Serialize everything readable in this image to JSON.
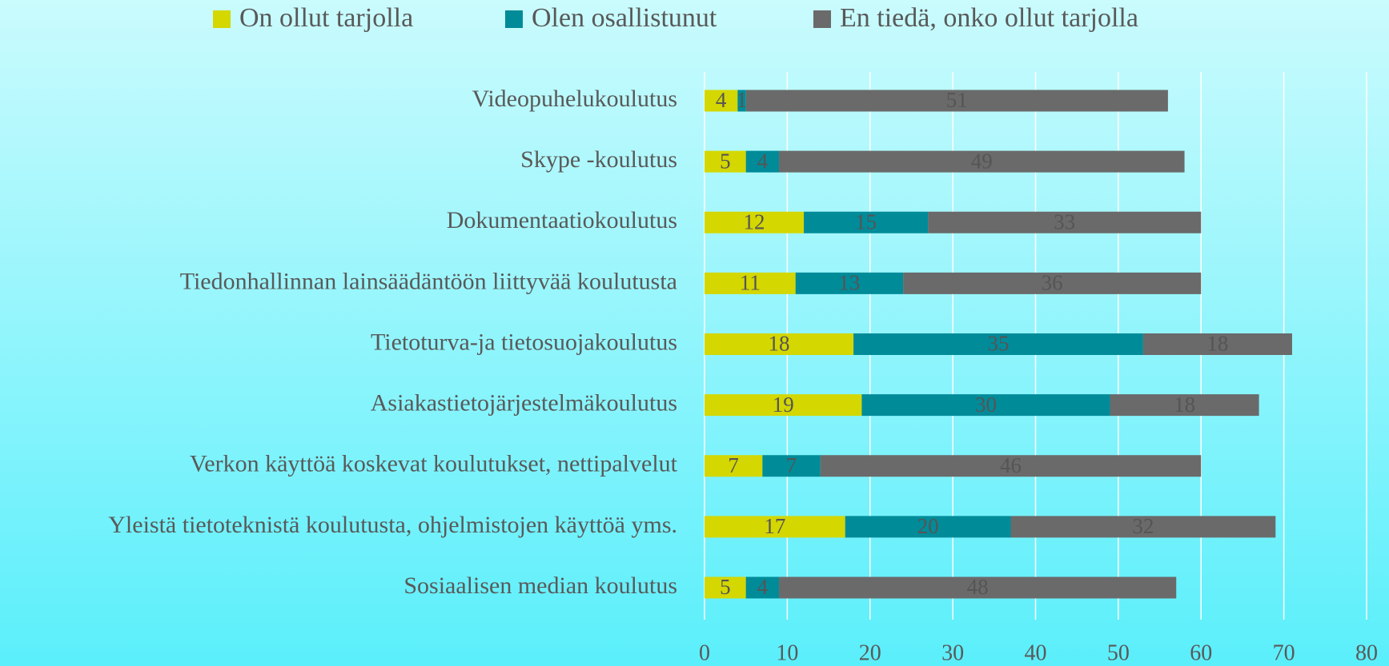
{
  "chart_data": {
    "type": "stacked_barh",
    "categories": [
      "Videopuhelukoulutus",
      "Skype -koulutus",
      "Dokumentaatiokoulutus",
      "Tiedonhallinnan lainsäädäntöön liittyvää koulutusta",
      "Tietoturva-ja tietosuojakoulutus",
      "Asiakastietojärjestelmäkoulutus",
      "Verkon käyttöä koskevat koulutukset, nettipalvelut",
      "Yleistä tietoteknistä koulutusta, ohjelmistojen käyttöä yms.",
      "Sosiaalisen median koulutus"
    ],
    "series": [
      {
        "name": "On ollut tarjolla",
        "color": "#d4d700",
        "values": [
          4,
          5,
          12,
          11,
          18,
          19,
          7,
          17,
          5
        ]
      },
      {
        "name": "Olen osallistunut",
        "color": "#008b99",
        "values": [
          1,
          4,
          15,
          13,
          35,
          30,
          7,
          20,
          4
        ]
      },
      {
        "name": "En tiedä, onko ollut tarjolla",
        "color": "#6a6a6a",
        "values": [
          51,
          49,
          33,
          36,
          18,
          18,
          46,
          32,
          48
        ]
      }
    ],
    "xlim": [
      0,
      80
    ],
    "xticks": [
      0,
      10,
      20,
      30,
      40,
      50,
      60,
      70,
      80
    ],
    "grid": true,
    "legend": "top"
  }
}
